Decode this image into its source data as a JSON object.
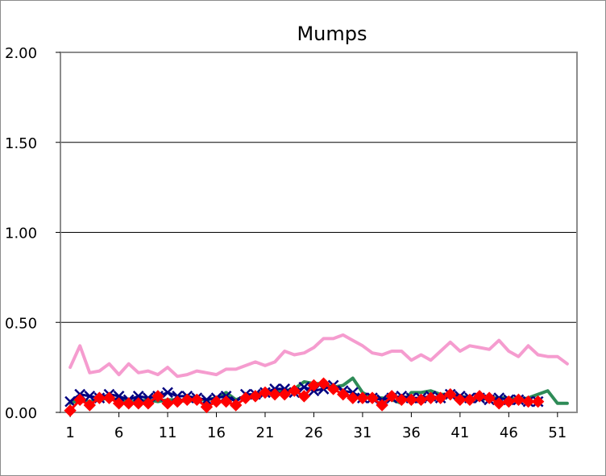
{
  "chart_data": {
    "type": "line",
    "title": "Mumps",
    "xlabel": "",
    "ylabel": "",
    "ylim": [
      0,
      2.0
    ],
    "xlim": [
      0,
      53
    ],
    "yticks": [
      "0.00",
      "0.50",
      "1.00",
      "1.50",
      "2.00"
    ],
    "ytick_values": [
      0,
      0.5,
      1.0,
      1.5,
      2.0
    ],
    "xticks": [
      "1",
      "6",
      "11",
      "16",
      "21",
      "26",
      "31",
      "36",
      "41",
      "46",
      "51"
    ],
    "xtick_values": [
      1,
      6,
      11,
      16,
      21,
      26,
      31,
      36,
      41,
      46,
      51
    ],
    "grid": true,
    "legend": "none",
    "series": [
      {
        "color": "#f59ccf",
        "marker": "none",
        "x": [
          1,
          2,
          3,
          4,
          5,
          6,
          7,
          8,
          9,
          10,
          11,
          12,
          13,
          14,
          15,
          16,
          17,
          18,
          19,
          20,
          21,
          22,
          23,
          24,
          25,
          26,
          27,
          28,
          29,
          30,
          31,
          32,
          33,
          34,
          35,
          36,
          37,
          38,
          39,
          40,
          41,
          42,
          43,
          44,
          45,
          46,
          47,
          48,
          49,
          50,
          51,
          52
        ],
        "values": [
          0.25,
          0.37,
          0.22,
          0.23,
          0.27,
          0.21,
          0.27,
          0.22,
          0.23,
          0.21,
          0.25,
          0.2,
          0.21,
          0.23,
          0.22,
          0.21,
          0.24,
          0.24,
          0.26,
          0.28,
          0.26,
          0.28,
          0.34,
          0.32,
          0.33,
          0.36,
          0.41,
          0.41,
          0.43,
          0.4,
          0.37,
          0.33,
          0.32,
          0.34,
          0.34,
          0.29,
          0.32,
          0.29,
          0.34,
          0.39,
          0.34,
          0.37,
          0.36,
          0.35,
          0.4,
          0.34,
          0.31,
          0.37,
          0.32,
          0.31,
          0.31,
          0.27
        ]
      },
      {
        "color": "#2e8b57",
        "marker": "none",
        "x": [
          1,
          2,
          3,
          4,
          5,
          6,
          7,
          8,
          9,
          10,
          11,
          12,
          13,
          14,
          15,
          16,
          17,
          18,
          19,
          20,
          21,
          22,
          23,
          24,
          25,
          26,
          27,
          28,
          29,
          30,
          31,
          32,
          33,
          34,
          35,
          36,
          37,
          38,
          39,
          40,
          41,
          42,
          43,
          44,
          45,
          46,
          47,
          48,
          49,
          50,
          51,
          52
        ],
        "values": [
          0.05,
          0.07,
          0.06,
          0.07,
          0.08,
          0.07,
          0.06,
          0.06,
          0.07,
          0.06,
          0.07,
          0.07,
          0.06,
          0.07,
          0.07,
          0.08,
          0.11,
          0.07,
          0.09,
          0.1,
          0.11,
          0.12,
          0.12,
          0.13,
          0.17,
          0.16,
          0.16,
          0.14,
          0.15,
          0.19,
          0.11,
          0.08,
          0.08,
          0.07,
          0.05,
          0.11,
          0.11,
          0.12,
          0.1,
          0.1,
          0.09,
          0.08,
          0.07,
          0.08,
          0.08,
          0.08,
          0.07,
          0.08,
          0.1,
          0.12,
          0.05,
          0.05
        ]
      },
      {
        "color": "#000080",
        "marker": "x",
        "x": [
          1,
          2,
          3,
          4,
          5,
          6,
          7,
          8,
          9,
          10,
          11,
          12,
          13,
          14,
          15,
          16,
          17,
          18,
          19,
          20,
          21,
          22,
          23,
          24,
          25,
          26,
          27,
          28,
          29,
          30,
          31,
          32,
          33,
          34,
          35,
          36,
          37,
          38,
          39,
          40,
          41,
          42,
          43,
          44,
          45,
          46,
          47,
          48,
          49
        ],
        "values": [
          0.06,
          0.1,
          0.09,
          0.08,
          0.1,
          0.09,
          0.07,
          0.09,
          0.08,
          0.09,
          0.11,
          0.09,
          0.09,
          0.08,
          0.07,
          0.08,
          0.09,
          0.06,
          0.1,
          0.1,
          0.11,
          0.13,
          0.13,
          0.11,
          0.14,
          0.12,
          0.13,
          0.15,
          0.12,
          0.11,
          0.08,
          0.08,
          0.07,
          0.08,
          0.09,
          0.08,
          0.08,
          0.09,
          0.08,
          0.1,
          0.09,
          0.08,
          0.08,
          0.07,
          0.08,
          0.07,
          0.07,
          0.06,
          0.06
        ]
      },
      {
        "color": "#ff0000",
        "marker": "diamond",
        "x": [
          1,
          2,
          3,
          4,
          5,
          6,
          7,
          8,
          9,
          10,
          11,
          12,
          13,
          14,
          15,
          16,
          17,
          18,
          19,
          20,
          21,
          22,
          23,
          24,
          25,
          26,
          27,
          28,
          29,
          30,
          31,
          32,
          33,
          34,
          35,
          36,
          37,
          38,
          39,
          40,
          41,
          42,
          43,
          44,
          45,
          46,
          47,
          48,
          49
        ],
        "values": [
          0.01,
          0.07,
          0.04,
          0.08,
          0.08,
          0.05,
          0.05,
          0.05,
          0.05,
          0.09,
          0.05,
          0.06,
          0.07,
          0.07,
          0.03,
          0.06,
          0.06,
          0.04,
          0.08,
          0.09,
          0.11,
          0.1,
          0.1,
          0.12,
          0.09,
          0.15,
          0.16,
          0.13,
          0.1,
          0.08,
          0.08,
          0.08,
          0.04,
          0.09,
          0.07,
          0.07,
          0.07,
          0.08,
          0.08,
          0.1,
          0.07,
          0.07,
          0.09,
          0.08,
          0.05,
          0.06,
          0.07,
          0.06,
          0.06
        ]
      }
    ]
  }
}
